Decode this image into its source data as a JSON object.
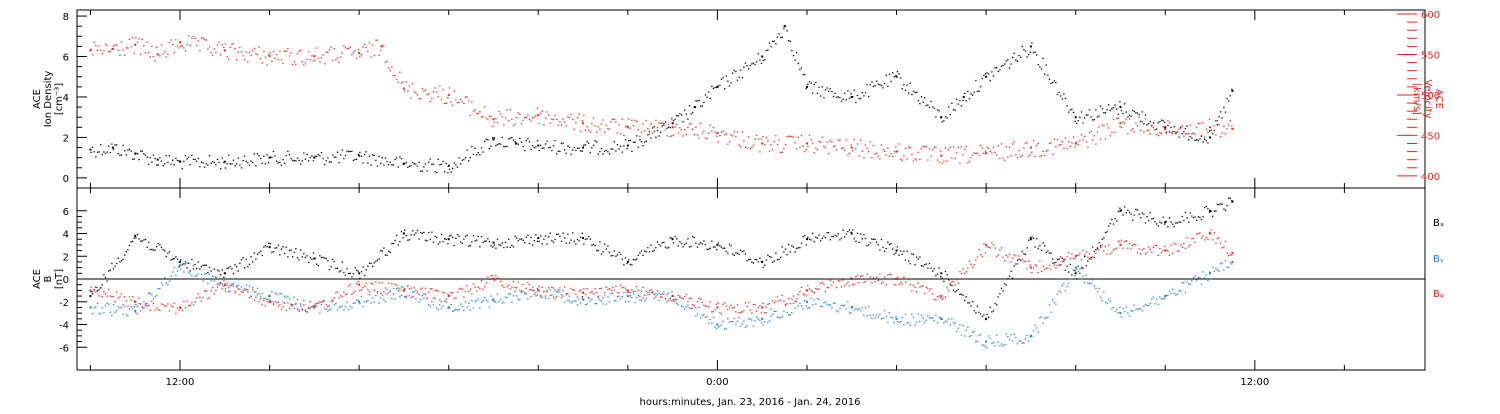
{
  "figure": {
    "xlabel": "hours:minutes, Jan. 23, 2016 - Jan. 24, 2016",
    "x_tick_labels": [
      "12:00",
      "0:00",
      "12:00"
    ]
  },
  "chart_data": [
    {
      "type": "scatter",
      "panel": "top",
      "x_unit": "hours since Jan. 23, 2016 00:00",
      "xlim": [
        9.7,
        39.8
      ],
      "left_axis": {
        "label_lines": [
          "ACE",
          "Ion Density",
          "[cm⁻³]"
        ],
        "ylim": [
          -0.5,
          8.3
        ],
        "ticks": [
          0,
          2,
          4,
          6,
          8
        ],
        "color": "#000000"
      },
      "right_axis": {
        "label_lines": [
          "ACE",
          "Velocity",
          "[km/s]"
        ],
        "ylim": [
          385,
          605
        ],
        "ticks": [
          400,
          450,
          500,
          550,
          600
        ],
        "color": "#e8241d"
      },
      "series": [
        {
          "name": "",
          "axis": "left",
          "color": "#000000",
          "x": [
            10.0,
            10.5,
            11.0,
            11.5,
            12.0,
            13.0,
            14.0,
            15.0,
            16.0,
            17.0,
            18.0,
            19.0,
            19.5,
            20.0,
            21.0,
            22.0,
            23.0,
            23.5,
            24.0,
            25.0,
            25.5,
            26.0,
            27.0,
            28.0,
            29.0,
            29.5,
            30.0,
            31.0,
            32.0,
            33.0,
            34.0,
            35.0,
            35.5
          ],
          "values": [
            1.4,
            1.5,
            1.2,
            0.9,
            0.8,
            0.8,
            1.0,
            1.0,
            1.1,
            0.7,
            0.6,
            1.9,
            1.7,
            1.6,
            1.5,
            1.6,
            2.7,
            3.5,
            4.5,
            6.0,
            7.5,
            4.5,
            4.0,
            5.0,
            3.0,
            4.0,
            5.0,
            6.5,
            3.0,
            3.5,
            2.5,
            2.0,
            4.3
          ]
        },
        {
          "name": "",
          "axis": "right",
          "color": "#e8241d",
          "x": [
            10.0,
            10.5,
            11.0,
            11.5,
            12.0,
            13.0,
            14.0,
            15.0,
            16.0,
            16.5,
            17.0,
            18.0,
            19.0,
            20.0,
            21.0,
            22.0,
            23.0,
            24.0,
            25.0,
            26.0,
            27.0,
            28.0,
            29.0,
            30.0,
            31.0,
            32.0,
            33.0,
            34.0,
            35.0,
            35.5
          ],
          "values": [
            555,
            557,
            562,
            550,
            565,
            555,
            548,
            548,
            552,
            560,
            508,
            500,
            470,
            475,
            465,
            460,
            460,
            453,
            440,
            440,
            435,
            430,
            425,
            428,
            435,
            440,
            465,
            458,
            460,
            458
          ]
        }
      ]
    },
    {
      "type": "scatter",
      "panel": "bottom",
      "x_unit": "hours since Jan. 23, 2016 00:00",
      "xlim": [
        9.7,
        39.8
      ],
      "left_axis": {
        "label_lines": [
          "ACE",
          "B",
          "[nT]"
        ],
        "ylim": [
          -8,
          8
        ],
        "ticks": [
          -6,
          -4,
          -2,
          0,
          2,
          4,
          6
        ],
        "color": "#000000"
      },
      "zero_line": true,
      "series": [
        {
          "name": "Bₓ",
          "color": "#000000",
          "x": [
            10.0,
            11.0,
            12.0,
            13.0,
            14.0,
            15.0,
            16.0,
            17.0,
            18.0,
            19.0,
            20.0,
            21.0,
            22.0,
            23.0,
            24.0,
            25.0,
            26.0,
            27.0,
            28.0,
            29.0,
            30.0,
            31.0,
            32.0,
            33.0,
            34.0,
            35.0,
            35.5
          ],
          "values": [
            -1.5,
            3.8,
            1.5,
            0.5,
            2.8,
            1.8,
            0.5,
            4.0,
            3.5,
            3.2,
            3.6,
            3.6,
            1.5,
            3.5,
            3.0,
            1.5,
            3.5,
            4.0,
            2.5,
            0.5,
            -3.5,
            3.5,
            0.5,
            6.0,
            5.0,
            6.0,
            6.8
          ]
        },
        {
          "name": "Bᵧ",
          "color": "#1f7fd8",
          "x": [
            10.0,
            11.0,
            12.0,
            13.0,
            14.0,
            15.0,
            16.0,
            17.0,
            18.0,
            19.0,
            20.0,
            21.0,
            22.0,
            23.0,
            24.0,
            25.0,
            26.0,
            27.0,
            28.0,
            29.0,
            30.0,
            31.0,
            32.0,
            33.0,
            34.0,
            35.0,
            35.5
          ],
          "values": [
            -2.5,
            -2.8,
            1.2,
            -0.5,
            -1.5,
            -2.5,
            -2.0,
            -1.0,
            -2.5,
            -1.8,
            -1.0,
            -1.8,
            -1.5,
            -1.5,
            -4.0,
            -3.5,
            -2.0,
            -2.5,
            -3.5,
            -3.5,
            -5.5,
            -5.0,
            1.0,
            -3.0,
            -1.5,
            0.5,
            1.5
          ]
        },
        {
          "name": "Bᵩ",
          "color": "#e8241d",
          "x": [
            10.0,
            11.0,
            12.0,
            13.0,
            14.0,
            15.0,
            16.0,
            17.0,
            18.0,
            19.0,
            20.0,
            21.0,
            22.0,
            23.0,
            24.0,
            25.0,
            26.0,
            27.0,
            28.0,
            29.0,
            30.0,
            31.0,
            32.0,
            33.0,
            34.0,
            35.0,
            35.5
          ],
          "values": [
            -1.0,
            -2.0,
            -2.5,
            -0.5,
            -2.0,
            -2.5,
            -0.5,
            -1.0,
            -1.5,
            0.0,
            -1.0,
            -1.2,
            -1.0,
            -1.5,
            -2.5,
            -2.5,
            -1.0,
            0.0,
            0.0,
            -1.5,
            3.0,
            1.0,
            2.0,
            3.0,
            2.5,
            4.0,
            2.3
          ]
        }
      ]
    }
  ]
}
